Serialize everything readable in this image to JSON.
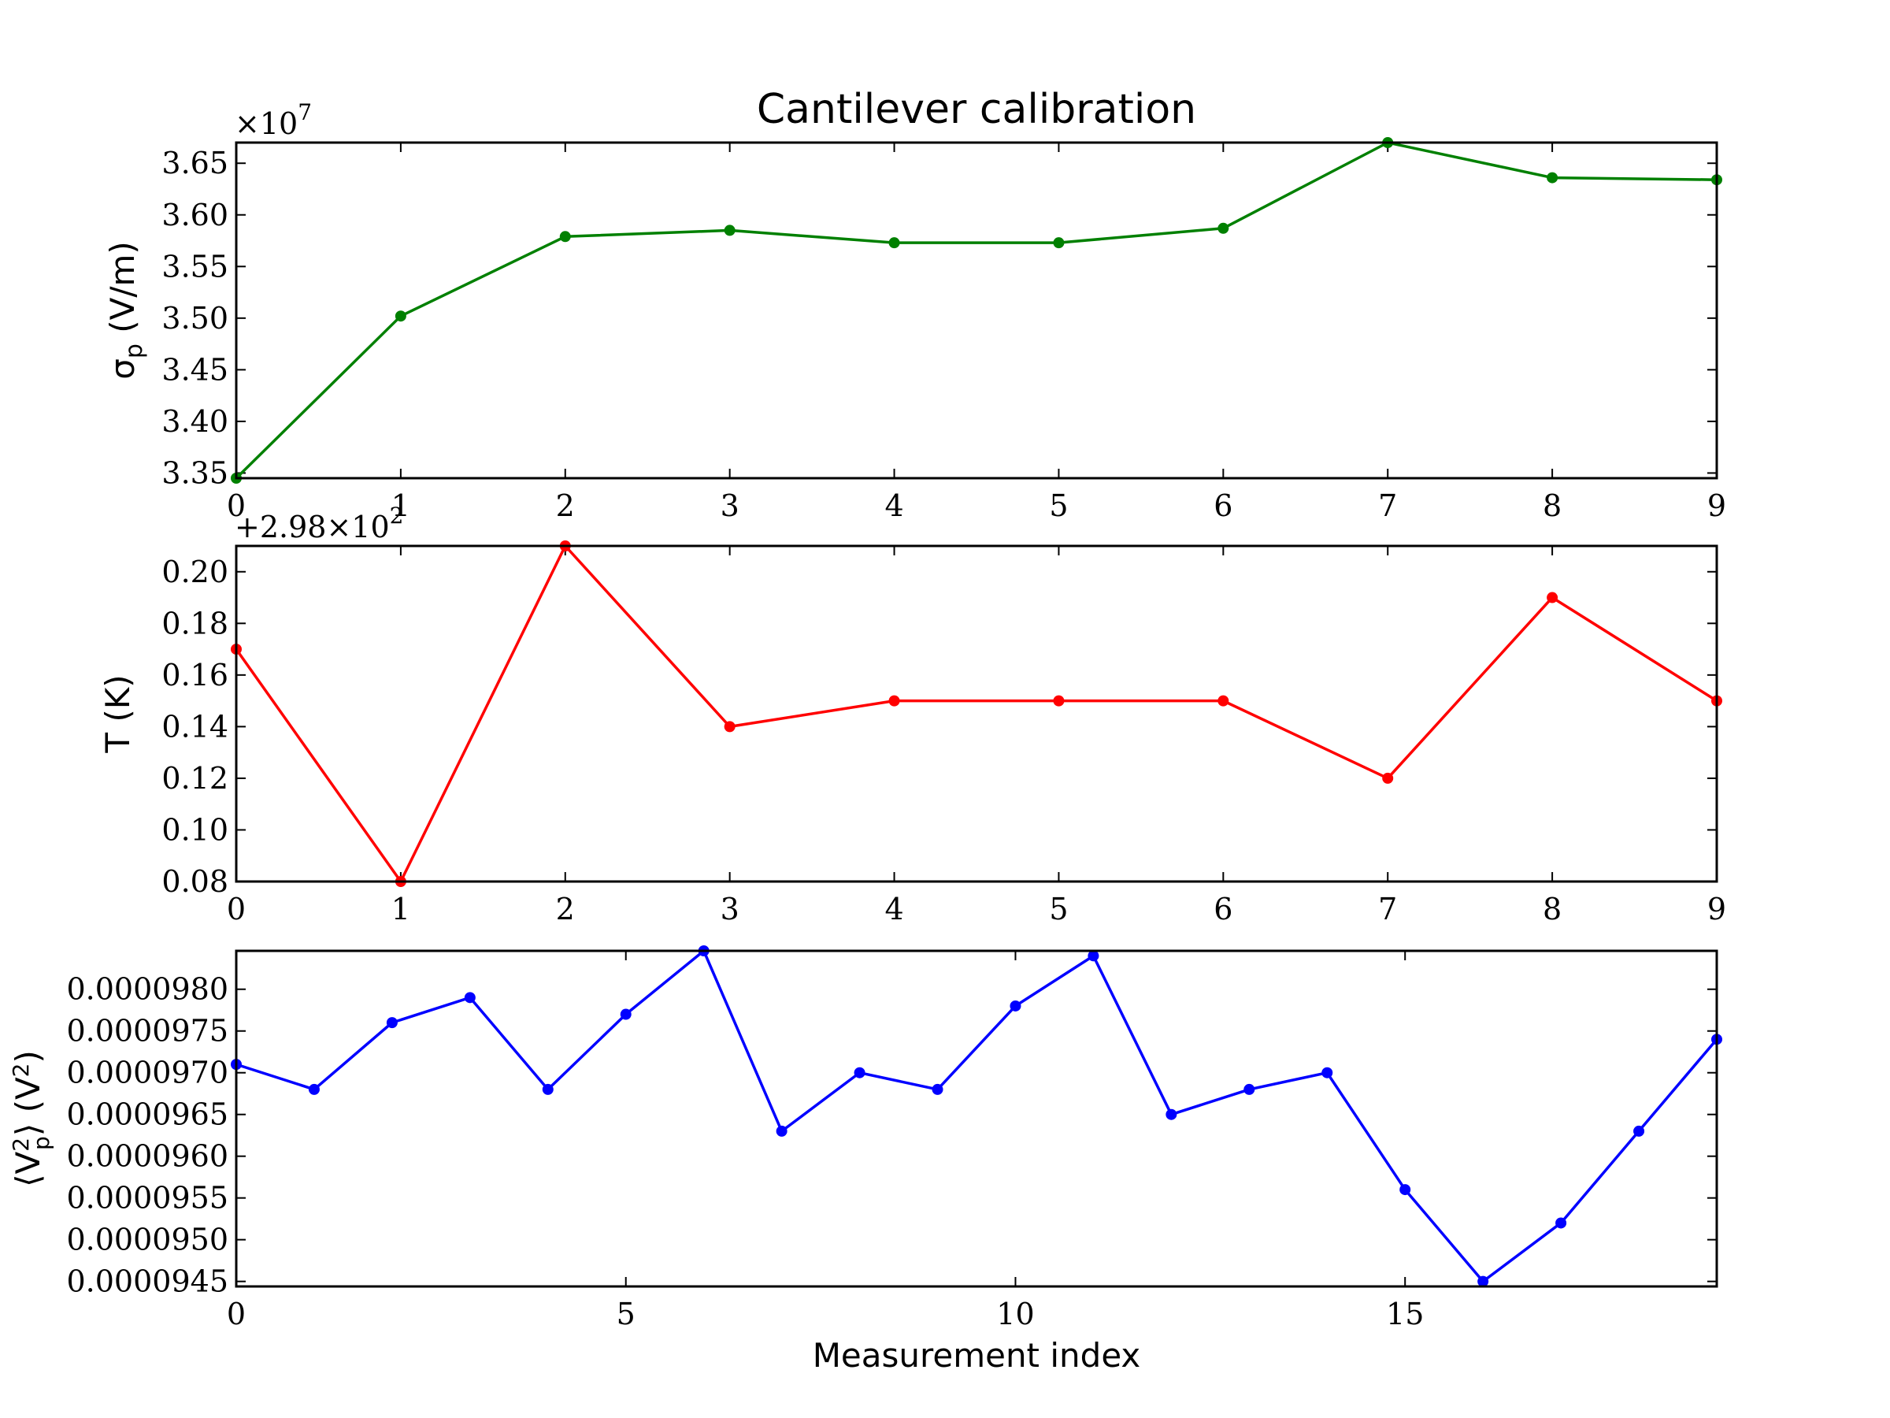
{
  "title": "Cantilever calibration",
  "xlabel": "Measurement index",
  "chart_data": [
    {
      "type": "line",
      "title": "Cantilever calibration",
      "ylabel": "σp (V/m)",
      "offset_text": "×10^7",
      "color": "#008000",
      "x": [
        0,
        1,
        2,
        3,
        4,
        5,
        6,
        7,
        8,
        9
      ],
      "values": [
        3.345,
        3.502,
        3.579,
        3.585,
        3.573,
        3.573,
        3.587,
        3.67,
        3.636,
        3.634
      ],
      "xlim": [
        0,
        9
      ],
      "ylim": [
        3.345,
        3.67
      ],
      "xticks": [
        0,
        1,
        2,
        3,
        4,
        5,
        6,
        7,
        8,
        9
      ],
      "yticks": [
        3.35,
        3.4,
        3.45,
        3.5,
        3.55,
        3.6,
        3.65
      ],
      "yticklabels": [
        "3.35",
        "3.40",
        "3.45",
        "3.50",
        "3.55",
        "3.60",
        "3.65"
      ]
    },
    {
      "type": "line",
      "ylabel": "T (K)",
      "offset_text": "+2.98×10^2",
      "color": "#ff0000",
      "x": [
        0,
        1,
        2,
        3,
        4,
        5,
        6,
        7,
        8,
        9
      ],
      "values": [
        0.17,
        0.08,
        0.21,
        0.14,
        0.15,
        0.15,
        0.15,
        0.12,
        0.19,
        0.15
      ],
      "xlim": [
        0,
        9
      ],
      "ylim": [
        0.08,
        0.21
      ],
      "xticks": [
        0,
        1,
        2,
        3,
        4,
        5,
        6,
        7,
        8,
        9
      ],
      "yticks": [
        0.08,
        0.1,
        0.12,
        0.14,
        0.16,
        0.18,
        0.2
      ],
      "yticklabels": [
        "0.08",
        "0.10",
        "0.12",
        "0.14",
        "0.16",
        "0.18",
        "0.20"
      ]
    },
    {
      "type": "line",
      "ylabel": "⟨Vp²⟩ (V²)",
      "xlabel": "Measurement index",
      "color": "#0000ff",
      "x": [
        0,
        1,
        2,
        3,
        4,
        5,
        6,
        7,
        8,
        9,
        10,
        11,
        12,
        13,
        14,
        15,
        16,
        17,
        18,
        19
      ],
      "values": [
        9.71e-05,
        9.68e-05,
        9.76e-05,
        9.79e-05,
        9.68e-05,
        9.77e-05,
        9.846e-05,
        9.63e-05,
        9.7e-05,
        9.68e-05,
        9.78e-05,
        9.84e-05,
        9.65e-05,
        9.68e-05,
        9.7e-05,
        9.56e-05,
        9.45e-05,
        9.52e-05,
        9.63e-05,
        9.74e-05
      ],
      "xlim": [
        0,
        19
      ],
      "ylim": [
        9.444e-05,
        9.846e-05
      ],
      "xticks": [
        0,
        5,
        10,
        15
      ],
      "yticks": [
        9.45e-05,
        9.5e-05,
        9.55e-05,
        9.6e-05,
        9.65e-05,
        9.7e-05,
        9.75e-05,
        9.8e-05
      ],
      "yticklabels": [
        "0.0000945",
        "0.0000950",
        "0.0000955",
        "0.0000960",
        "0.0000965",
        "0.0000970",
        "0.0000975",
        "0.0000980"
      ]
    }
  ]
}
